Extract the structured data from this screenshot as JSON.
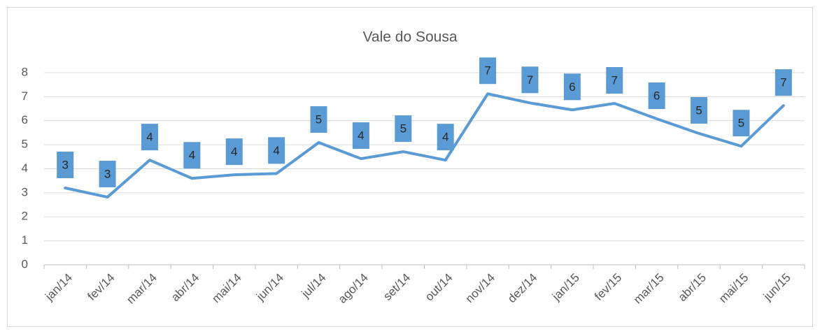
{
  "chart_data": {
    "type": "line",
    "title": "Vale do Sousa",
    "categories": [
      "jan/14",
      "fev/14",
      "mar/14",
      "abr/14",
      "mai/14",
      "jun/14",
      "jul/14",
      "ago/14",
      "set/14",
      "out/14",
      "nov/14",
      "dez/14",
      "jan/15",
      "fev/15",
      "mar/15",
      "abr/15",
      "mai/15",
      "jun/15"
    ],
    "values": [
      3.2,
      2.82,
      4.36,
      3.6,
      3.75,
      3.8,
      5.09,
      4.42,
      4.71,
      4.36,
      7.12,
      6.74,
      6.45,
      6.72,
      6.08,
      5.47,
      4.94,
      6.63
    ],
    "value_labels": [
      "3",
      "3",
      "4",
      "4",
      "4",
      "4",
      "5",
      "4",
      "5",
      "4",
      "7",
      "7",
      "6",
      "7",
      "6",
      "5",
      "5",
      "7"
    ],
    "color": "#5b9bd5",
    "ylim": [
      0,
      8
    ],
    "yticks": [
      0,
      1,
      2,
      3,
      4,
      5,
      6,
      7,
      8
    ],
    "grid": true
  }
}
